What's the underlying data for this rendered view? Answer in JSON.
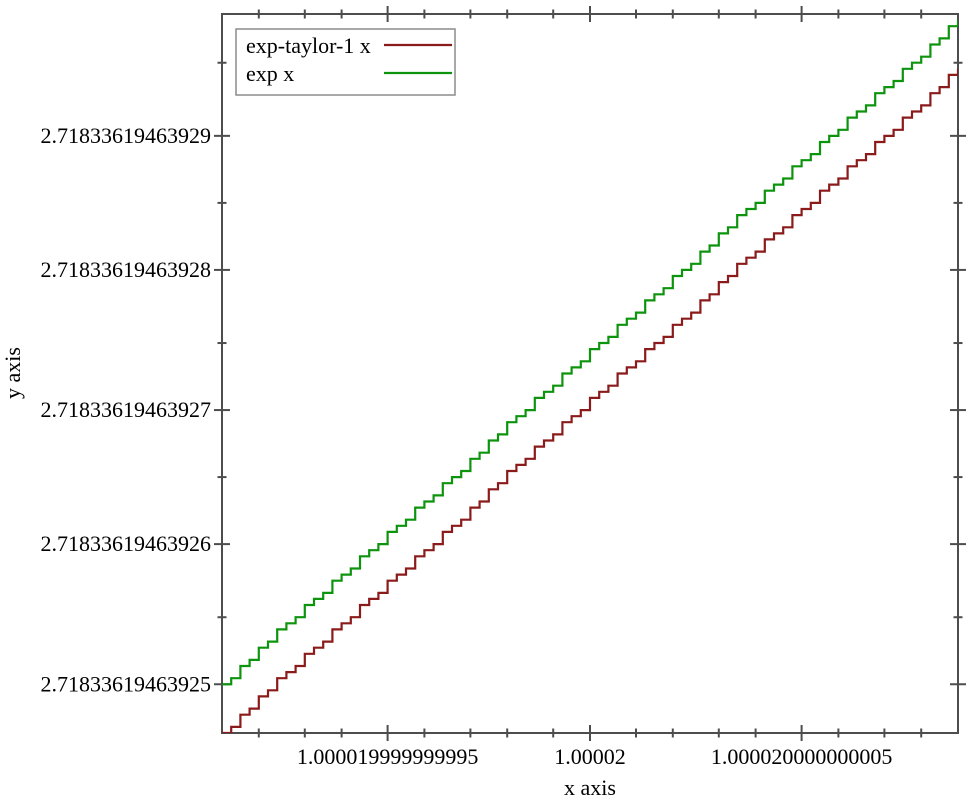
{
  "chart_data": {
    "type": "line",
    "style": "staircase-steps",
    "title": "",
    "xlabel": "x axis",
    "ylabel": "y axis",
    "xlim": [
      1.000019999999991,
      1.0000200000000088
    ],
    "ylim": [
      2.7183361946392464,
      2.7183361946392988
    ],
    "x_step": 2.220446049250313e-16,
    "grid": false,
    "x_major_ticks": [
      {
        "value": 1.000019999999995,
        "label": "1.000019999999995"
      },
      {
        "value": 1.00002,
        "label": "1.00002"
      },
      {
        "value": 1.000020000000005,
        "label": "1.000020000000005"
      }
    ],
    "x_minor_ticks": [
      1.000019999999992,
      1.000019999999993,
      1.000019999999994,
      1.000019999999996,
      1.000019999999997,
      1.000019999999998,
      1.000019999999999,
      1.000020000000001,
      1.000020000000002,
      1.000020000000003,
      1.000020000000004,
      1.000020000000006,
      1.000020000000007,
      1.000020000000008
    ],
    "y_major_ticks": [
      {
        "value": 2.71833619463925,
        "label": "2.71833619463925"
      },
      {
        "value": 2.71833619463926,
        "label": "2.71833619463926"
      },
      {
        "value": 2.71833619463927,
        "label": "2.71833619463927"
      },
      {
        "value": 2.71833619463928,
        "label": "2.71833619463928"
      },
      {
        "value": 2.71833619463929,
        "label": "2.71833619463929"
      }
    ],
    "y_minor_ticks": [
      2.718336194639255,
      2.718336194639265,
      2.718336194639275,
      2.718336194639285,
      2.718336194639295
    ],
    "series": [
      {
        "name": "exp-taylor-1 x",
        "color": "#8b1a1a",
        "function": "y = exp(x) - 3.55e-15, IEEE-754 double staircase sampled at every representable x",
        "y_offset": -3.55e-15
      },
      {
        "name": "exp x",
        "color": "#0d940d",
        "function": "y = exp(x), IEEE-754 double staircase sampled at every representable x",
        "y_offset": 0
      }
    ],
    "legend": {
      "position": "top-left",
      "items": [
        {
          "label": "exp-taylor-1 x",
          "color": "#8b1a1a"
        },
        {
          "label": "exp x",
          "color": "#0d940d"
        }
      ]
    }
  }
}
